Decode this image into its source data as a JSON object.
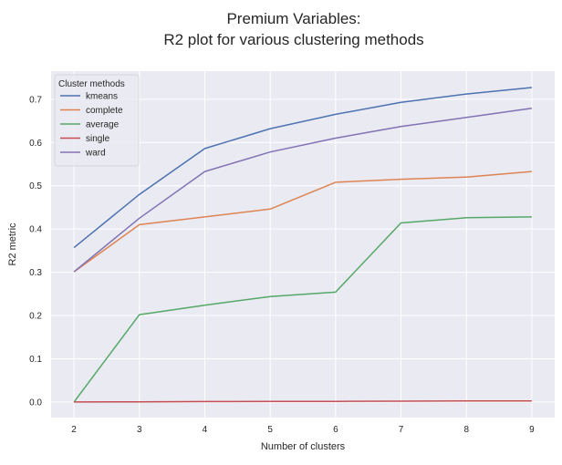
{
  "chart_data": {
    "type": "line",
    "title": "Premium Variables:",
    "subtitle": "R2 plot for various clustering methods",
    "xlabel": "Number of clusters",
    "ylabel": "R2 metric",
    "x": [
      2,
      3,
      4,
      5,
      6,
      7,
      8,
      9
    ],
    "xlim": [
      1.65,
      9.35
    ],
    "ylim": [
      -0.036,
      0.765
    ],
    "yticks": [
      0.0,
      0.1,
      0.2,
      0.3,
      0.4,
      0.5,
      0.6,
      0.7
    ],
    "ytick_labels": [
      "0.0",
      "0.1",
      "0.2",
      "0.3",
      "0.4",
      "0.5",
      "0.6",
      "0.7"
    ],
    "grid": true,
    "legend": {
      "title": "Cluster methods",
      "placement": "top-left"
    },
    "series": [
      {
        "name": "kmeans",
        "color": "#4c72b0",
        "values": [
          0.357,
          0.48,
          0.586,
          0.632,
          0.665,
          0.693,
          0.712,
          0.727
        ]
      },
      {
        "name": "complete",
        "color": "#dd8452",
        "values": [
          0.301,
          0.41,
          0.428,
          0.446,
          0.508,
          0.515,
          0.52,
          0.533
        ]
      },
      {
        "name": "average",
        "color": "#55a868",
        "values": [
          0.0,
          0.202,
          0.224,
          0.244,
          0.254,
          0.414,
          0.426,
          0.428
        ]
      },
      {
        "name": "single",
        "color": "#c44e52",
        "values": [
          0.0,
          0.0005,
          0.001,
          0.0013,
          0.0016,
          0.002,
          0.0023,
          0.0026
        ]
      },
      {
        "name": "ward",
        "color": "#8172b3",
        "values": [
          0.301,
          0.425,
          0.533,
          0.578,
          0.61,
          0.637,
          0.658,
          0.679
        ]
      }
    ]
  }
}
